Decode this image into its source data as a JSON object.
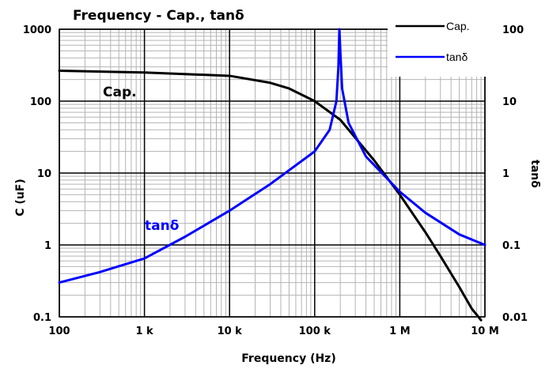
{
  "chart_data": {
    "type": "line",
    "title": "Frequency - Cap., tanδ",
    "xlabel": "Frequency (Hz)",
    "ylabel": "C (uF)",
    "y2label": "tanδ",
    "xscale": "log",
    "yscale": "log",
    "y2scale": "log",
    "xlim": [
      100,
      10000000
    ],
    "ylim": [
      0.1,
      1000
    ],
    "y2lim": [
      0.01,
      100
    ],
    "grid": true,
    "legend_position": "top-right",
    "x_tick_labels": [
      "100",
      "1 k",
      "10 k",
      "100 k",
      "1 M",
      "10 M"
    ],
    "y_tick_labels": [
      "0.1",
      "1",
      "10",
      "100",
      "1000"
    ],
    "y2_tick_labels": [
      "0.01",
      "0.1",
      "1",
      "10",
      "100"
    ],
    "series": [
      {
        "name": "Cap.",
        "axis": "left",
        "color": "#000000",
        "x": [
          100,
          1000,
          10000,
          30000,
          50000,
          100000,
          200000,
          500000,
          1000000,
          2000000,
          3000000,
          5000000,
          7000000,
          9000000
        ],
        "values": [
          265,
          250,
          225,
          180,
          150,
          100,
          55,
          15,
          5,
          1.5,
          0.7,
          0.26,
          0.13,
          0.09
        ]
      },
      {
        "name": "tanδ",
        "axis": "right",
        "color": "#0000ff",
        "x": [
          100,
          300,
          1000,
          3000,
          10000,
          30000,
          100000,
          150000,
          180000,
          190000,
          195000,
          200000,
          210000,
          250000,
          400000,
          1000000,
          2000000,
          5000000,
          10000000
        ],
        "values": [
          0.03,
          0.042,
          0.065,
          0.13,
          0.3,
          0.7,
          2,
          4,
          10,
          30,
          100,
          50,
          15,
          5,
          1.7,
          0.55,
          0.28,
          0.14,
          0.1
        ]
      }
    ],
    "annotations": [
      {
        "text": "Cap.",
        "color": "#000000"
      },
      {
        "text": "tanδ",
        "color": "#0000ff"
      }
    ]
  }
}
